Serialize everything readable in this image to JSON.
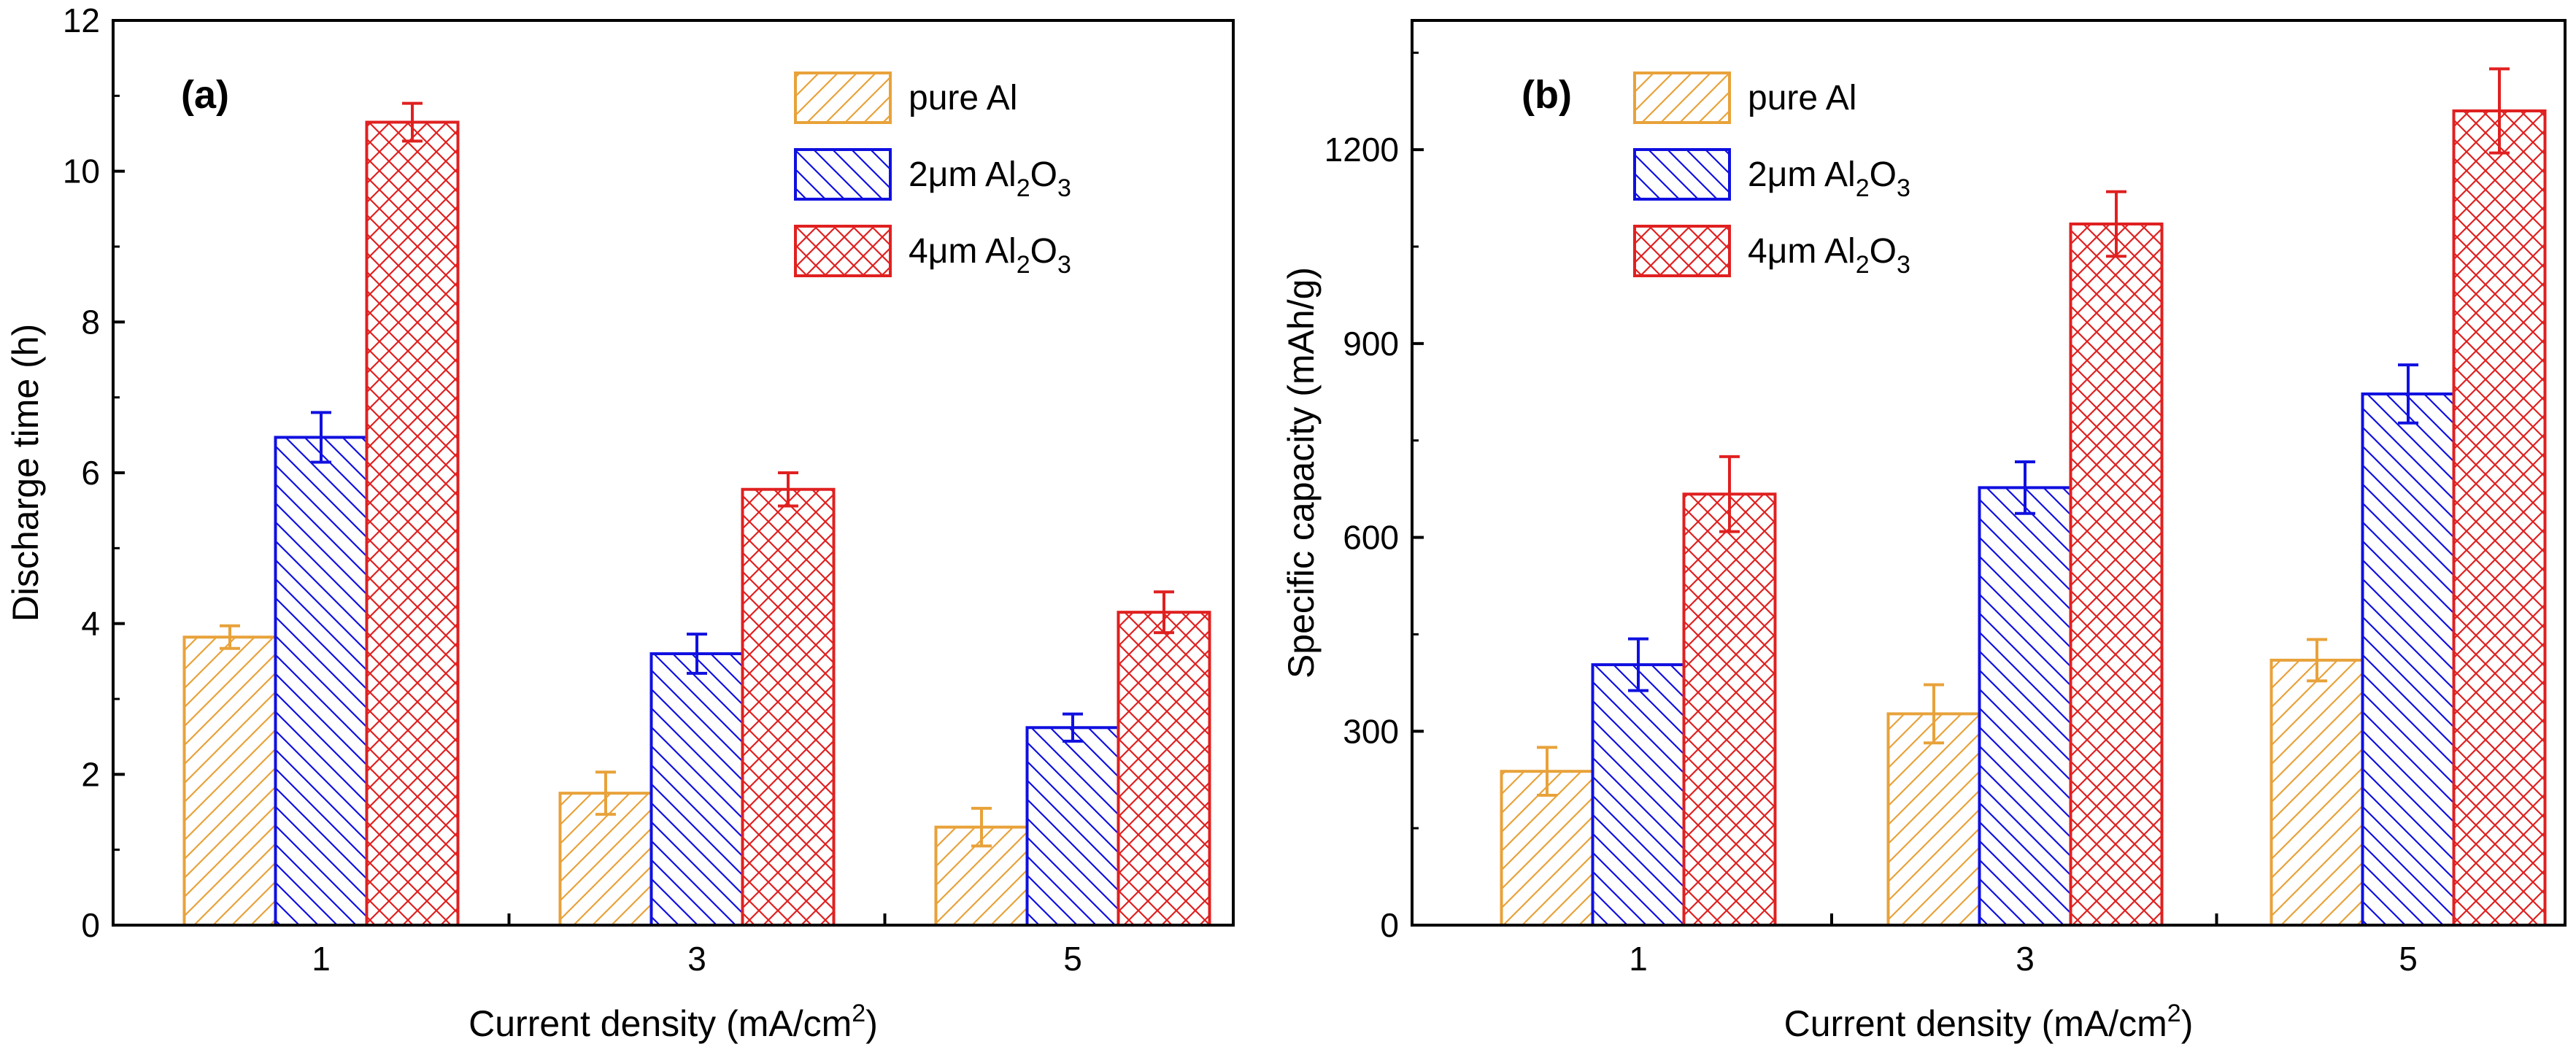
{
  "colors": {
    "pure_al": "#E8A23A",
    "al2o3_2um": "#1010E0",
    "al2o3_4um": "#E02020",
    "axis": "#000000"
  },
  "chart_data": [
    {
      "type": "bar",
      "panel_label": "(a)",
      "title": "",
      "xlabel": "Current density (mA/cm",
      "xlabel_sup": "2",
      "xlabel_end": ")",
      "ylabel": "Discharge time (h)",
      "categories": [
        "1",
        "3",
        "5"
      ],
      "ylim": [
        0,
        12
      ],
      "yticks": [
        0,
        2,
        4,
        6,
        8,
        10,
        12
      ],
      "yticks_labels": [
        "0",
        "2",
        "4",
        "6",
        "8",
        "10",
        "12"
      ],
      "legend_position": "top-right",
      "series": [
        {
          "name": "pure Al",
          "label_main": "pure Al",
          "label_sub": "",
          "label_tail": "",
          "color_key": "pure_al",
          "pattern": "diag-up",
          "values": [
            3.82,
            1.75,
            1.3
          ],
          "errors": [
            0.15,
            0.28,
            0.25
          ]
        },
        {
          "name": "2μm Al2O3",
          "label_main": "2μm Al",
          "label_sub": "2",
          "label_tail": "O",
          "label_sub2": "3",
          "color_key": "al2o3_2um",
          "pattern": "diag-down",
          "values": [
            6.47,
            3.6,
            2.62
          ],
          "errors": [
            0.33,
            0.26,
            0.18
          ]
        },
        {
          "name": "4μm Al2O3",
          "label_main": "4μm Al",
          "label_sub": "2",
          "label_tail": "O",
          "label_sub2": "3",
          "color_key": "al2o3_4um",
          "pattern": "cross",
          "values": [
            10.65,
            5.78,
            4.15
          ],
          "errors": [
            0.25,
            0.22,
            0.27
          ]
        }
      ]
    },
    {
      "type": "bar",
      "panel_label": "(b)",
      "title": "",
      "xlabel": "Current density (mA/cm",
      "xlabel_sup": "2",
      "xlabel_end": ")",
      "ylabel": "Specific capacity (mAh/g)",
      "categories": [
        "1",
        "3",
        "5"
      ],
      "ylim": [
        0,
        1400
      ],
      "yticks": [
        0,
        300,
        600,
        900,
        1200
      ],
      "yticks_labels": [
        "0",
        "300",
        "600",
        "900",
        "1200"
      ],
      "legend_position": "top-left",
      "series": [
        {
          "name": "pure Al",
          "label_main": "pure Al",
          "label_sub": "",
          "label_tail": "",
          "color_key": "pure_al",
          "pattern": "diag-up",
          "values": [
            238,
            327,
            410
          ],
          "errors": [
            37,
            45,
            32
          ]
        },
        {
          "name": "2μm Al2O3",
          "label_main": "2μm Al",
          "label_sub": "2",
          "label_tail": "O",
          "label_sub2": "3",
          "color_key": "al2o3_2um",
          "pattern": "diag-down",
          "values": [
            403,
            677,
            822
          ],
          "errors": [
            40,
            40,
            45
          ]
        },
        {
          "name": "4μm Al2O3",
          "label_main": "4μm Al",
          "label_sub": "2",
          "label_tail": "O",
          "label_sub2": "3",
          "color_key": "al2o3_4um",
          "pattern": "cross",
          "values": [
            667,
            1085,
            1260
          ],
          "errors": [
            58,
            50,
            65
          ]
        }
      ]
    }
  ]
}
